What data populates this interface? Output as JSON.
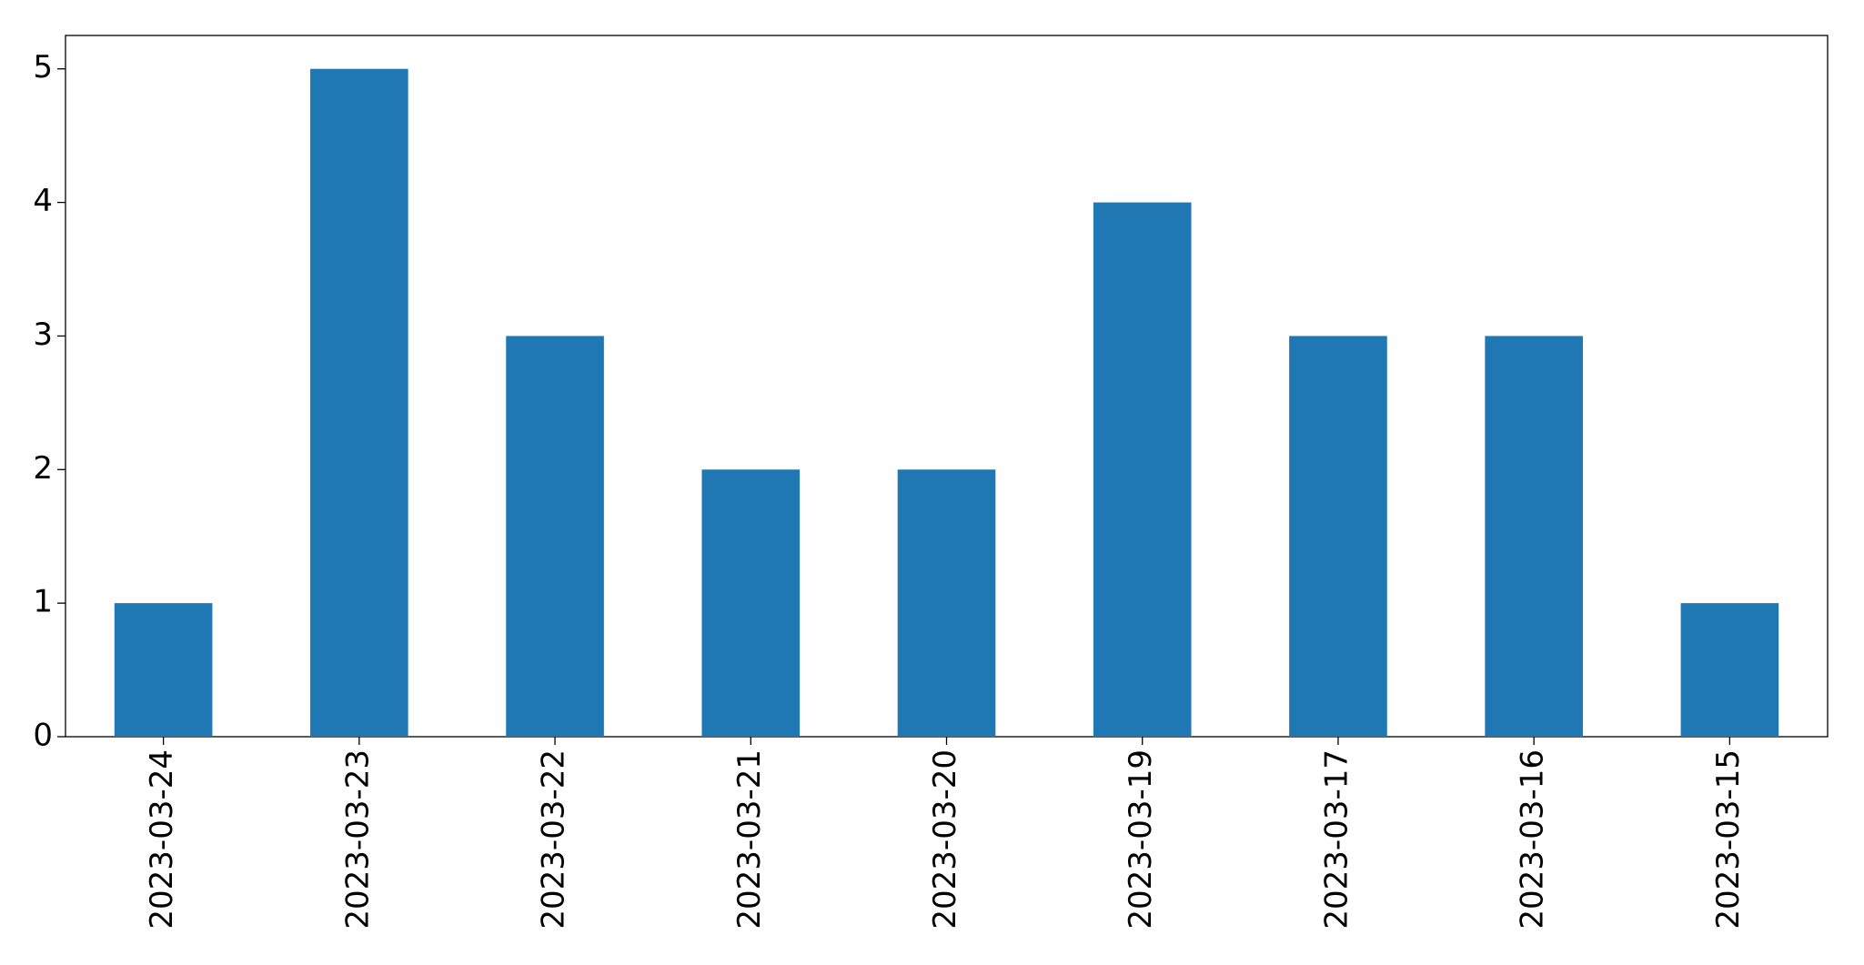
{
  "chart_data": {
    "type": "bar",
    "categories": [
      "2023-03-24",
      "2023-03-23",
      "2023-03-22",
      "2023-03-21",
      "2023-03-20",
      "2023-03-19",
      "2023-03-17",
      "2023-03-16",
      "2023-03-15"
    ],
    "values": [
      1,
      5,
      3,
      2,
      2,
      4,
      3,
      3,
      1
    ],
    "color": "#1f77b4",
    "ylim": [
      0,
      5.25
    ],
    "yticks": [
      0,
      1,
      2,
      3,
      4,
      5
    ],
    "grid": false
  }
}
